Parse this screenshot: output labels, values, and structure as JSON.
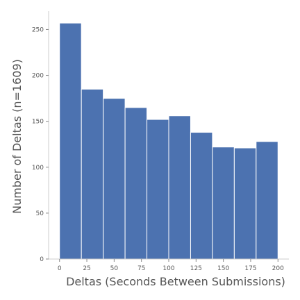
{
  "chart_data": {
    "type": "bar",
    "subtype": "histogram",
    "xlabel": "Deltas (Seconds Between Submissions)",
    "ylabel": "Number of Deltas (n=1609)",
    "bins": [
      {
        "start": 0,
        "end": 20,
        "count": 257
      },
      {
        "start": 20,
        "end": 40,
        "count": 185
      },
      {
        "start": 40,
        "end": 60,
        "count": 175
      },
      {
        "start": 60,
        "end": 80,
        "count": 165
      },
      {
        "start": 80,
        "end": 100,
        "count": 152
      },
      {
        "start": 100,
        "end": 120,
        "count": 156
      },
      {
        "start": 120,
        "end": 140,
        "count": 138
      },
      {
        "start": 140,
        "end": 160,
        "count": 122
      },
      {
        "start": 160,
        "end": 180,
        "count": 121
      },
      {
        "start": 180,
        "end": 200,
        "count": 128
      }
    ],
    "xlim": [
      -10,
      210
    ],
    "ylim": [
      0,
      270
    ],
    "xticks": [
      0,
      25,
      50,
      75,
      100,
      125,
      150,
      175,
      200
    ],
    "xtick_labels": [
      "0",
      "25",
      "50",
      "75",
      "100",
      "125",
      "150",
      "175",
      "200"
    ],
    "yticks": [
      0,
      50,
      100,
      150,
      200,
      250
    ],
    "ytick_labels": [
      "0",
      "50",
      "100",
      "150",
      "200",
      "250"
    ],
    "bar_color": "#4c72b0",
    "grid": false,
    "legend": "none"
  }
}
